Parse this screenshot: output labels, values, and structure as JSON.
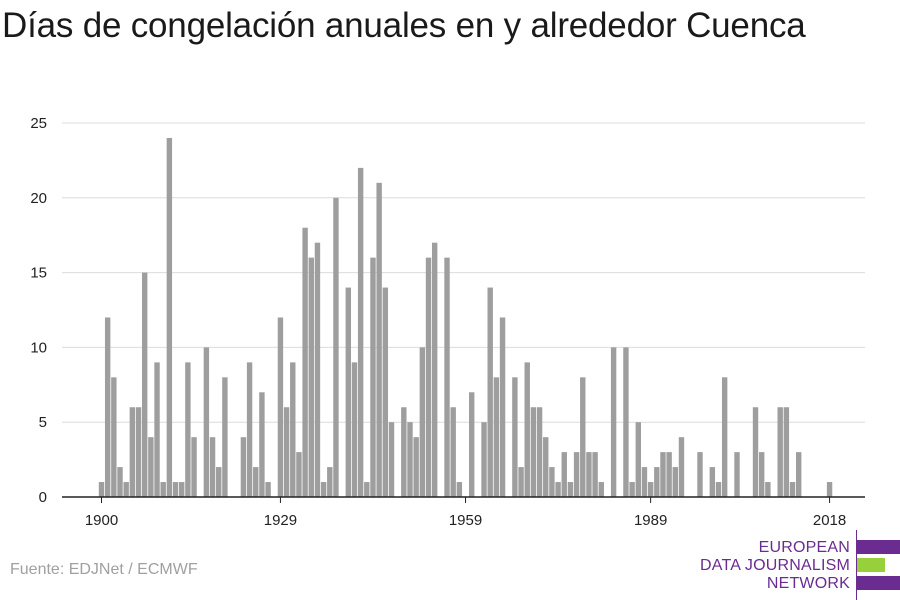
{
  "source": "Fuente: EDJNet / ECMWF",
  "logo": {
    "line1": "EUROPEAN",
    "line2": "DATA JOURNALISM",
    "line3": "NETWORK",
    "purple": "#6a2c91",
    "green": "#97d03a"
  },
  "colors": {
    "bar": "#9e9e9e",
    "grid": "#dcdcdc",
    "axis": "#222222"
  },
  "chart_data": {
    "type": "bar",
    "title": "Días de congelación anuales en y alrededor Cuenca",
    "xlabel": "",
    "ylabel": "",
    "ylim": [
      0,
      25
    ],
    "yticks": [
      0,
      5,
      10,
      15,
      20,
      25
    ],
    "xticks": [
      1900,
      1929,
      1959,
      1989,
      2018
    ],
    "grid": true,
    "x": [
      1900,
      1901,
      1902,
      1903,
      1904,
      1905,
      1906,
      1907,
      1908,
      1909,
      1910,
      1911,
      1912,
      1913,
      1914,
      1915,
      1916,
      1917,
      1918,
      1919,
      1920,
      1921,
      1922,
      1923,
      1924,
      1925,
      1926,
      1927,
      1928,
      1929,
      1930,
      1931,
      1932,
      1933,
      1934,
      1935,
      1936,
      1937,
      1938,
      1939,
      1940,
      1941,
      1942,
      1943,
      1944,
      1945,
      1946,
      1947,
      1948,
      1949,
      1950,
      1951,
      1952,
      1953,
      1954,
      1955,
      1956,
      1957,
      1958,
      1959,
      1960,
      1961,
      1962,
      1963,
      1964,
      1965,
      1966,
      1967,
      1968,
      1969,
      1970,
      1971,
      1972,
      1973,
      1974,
      1975,
      1976,
      1977,
      1978,
      1979,
      1980,
      1981,
      1982,
      1983,
      1984,
      1985,
      1986,
      1987,
      1988,
      1989,
      1990,
      1991,
      1992,
      1993,
      1994,
      1995,
      1996,
      1997,
      1998,
      1999,
      2000,
      2001,
      2002,
      2003,
      2004,
      2005,
      2006,
      2007,
      2008,
      2009,
      2010,
      2011,
      2012,
      2013,
      2014,
      2015,
      2016,
      2017,
      2018
    ],
    "values": [
      1,
      12,
      8,
      2,
      1,
      6,
      6,
      15,
      4,
      9,
      1,
      24,
      1,
      1,
      9,
      4,
      0,
      10,
      4,
      2,
      8,
      0,
      0,
      4,
      9,
      2,
      7,
      1,
      0,
      12,
      6,
      9,
      3,
      18,
      16,
      17,
      1,
      2,
      20,
      0,
      14,
      9,
      22,
      1,
      16,
      21,
      14,
      5,
      0,
      6,
      5,
      4,
      10,
      16,
      17,
      0,
      16,
      6,
      1,
      0,
      7,
      0,
      5,
      14,
      8,
      12,
      0,
      8,
      2,
      9,
      6,
      6,
      4,
      2,
      1,
      3,
      1,
      3,
      8,
      3,
      3,
      1,
      0,
      10,
      0,
      10,
      1,
      5,
      2,
      1,
      2,
      3,
      3,
      2,
      4,
      0,
      0,
      3,
      0,
      2,
      1,
      8,
      0,
      3,
      0,
      0,
      6,
      3,
      1,
      0,
      6,
      6,
      1,
      3,
      0,
      0,
      0,
      0,
      1
    ]
  }
}
